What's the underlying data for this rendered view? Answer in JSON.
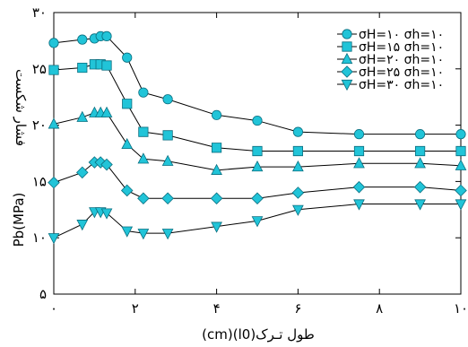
{
  "chart_data": {
    "type": "line",
    "xlabel": "طول تـرک(l0)(cm)",
    "ylabel": "Pb(MPa)",
    "ylabel_fa": "فشار شکست",
    "xlim": [
      0,
      10
    ],
    "ylim": [
      5,
      30
    ],
    "x_ticks": [
      0,
      2,
      4,
      6,
      8,
      10
    ],
    "x_tick_labels": [
      "۰",
      "۲",
      "۴",
      "۶",
      "۸",
      "۱۰"
    ],
    "y_ticks": [
      5,
      10,
      15,
      20,
      25,
      30
    ],
    "y_tick_labels": [
      "۵",
      "۱۰",
      "۱۵",
      "۲۰",
      "۲۵",
      "۳۰"
    ],
    "grid": false,
    "legend_position": "top-right",
    "marker_color": "#21c4d8",
    "line_color": "#000000",
    "series": [
      {
        "name": "σH=۱۰ σh=۱۰",
        "marker": "circle",
        "x": [
          0,
          0.7,
          1,
          1.15,
          1.3,
          1.8,
          2.2,
          2.8,
          4,
          5,
          6,
          7.5,
          9,
          10
        ],
        "y": [
          27.3,
          27.6,
          27.7,
          27.9,
          27.9,
          26.0,
          22.9,
          22.3,
          20.9,
          20.4,
          19.4,
          19.2,
          19.2,
          19.2
        ]
      },
      {
        "name": "σH=۱۵ σh=۱۰",
        "marker": "square",
        "x": [
          0,
          0.7,
          1,
          1.15,
          1.3,
          1.8,
          2.2,
          2.8,
          4,
          5,
          6,
          7.5,
          9,
          10
        ],
        "y": [
          24.9,
          25.1,
          25.4,
          25.4,
          25.3,
          21.9,
          19.4,
          19.1,
          18.0,
          17.7,
          17.7,
          17.7,
          17.7,
          17.7
        ]
      },
      {
        "name": "σH=۲۰ σh=۱۰",
        "marker": "triangle-up",
        "x": [
          0,
          0.7,
          1,
          1.15,
          1.3,
          1.8,
          2.2,
          2.8,
          4,
          5,
          6,
          7.5,
          9,
          10
        ],
        "y": [
          20.1,
          20.7,
          21.1,
          21.1,
          21.1,
          18.3,
          17.0,
          16.8,
          16.0,
          16.3,
          16.3,
          16.6,
          16.6,
          16.4
        ]
      },
      {
        "name": "σH=۲۵ σh=۱۰",
        "marker": "diamond",
        "x": [
          0,
          0.7,
          1,
          1.15,
          1.3,
          1.8,
          2.2,
          2.8,
          4,
          5,
          6,
          7.5,
          9,
          10
        ],
        "y": [
          14.9,
          15.8,
          16.7,
          16.7,
          16.5,
          14.2,
          13.5,
          13.5,
          13.5,
          13.5,
          14.0,
          14.5,
          14.5,
          14.2
        ]
      },
      {
        "name": "σH=۳۰ σh=۱۰",
        "marker": "triangle-down",
        "x": [
          0,
          0.7,
          1,
          1.15,
          1.3,
          1.8,
          2.2,
          2.8,
          4,
          5,
          6,
          7.5,
          9,
          10
        ],
        "y": [
          10.0,
          11.2,
          12.3,
          12.3,
          12.2,
          10.6,
          10.4,
          10.4,
          11.0,
          11.5,
          12.5,
          13.0,
          13.0,
          13.0
        ]
      }
    ]
  }
}
